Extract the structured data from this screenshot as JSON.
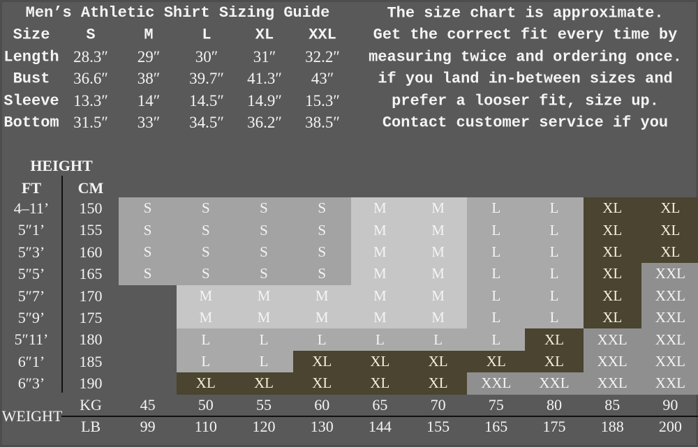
{
  "title": "Men’s Athletic Shirt Sizing Guide",
  "notes": [
    "The size chart is approximate.",
    "Get the correct fit every time by",
    "measuring twice and ordering once.",
    "if you land in-between sizes and",
    "prefer a looser fit, size up.",
    "Contact customer service if you"
  ],
  "measurements": {
    "header": [
      "Size",
      "S",
      "M",
      "L",
      "XL",
      "XXL"
    ],
    "rows": [
      [
        "Length",
        "28.3″",
        "29″",
        "30″",
        "31″",
        "32.2″"
      ],
      [
        "Bust",
        "36.6″",
        "38″",
        "39.7″",
        "41.3″",
        "43″"
      ],
      [
        "Sleeve",
        "13.3″",
        "14″",
        "14.5″",
        "14.9″",
        "15.3″"
      ],
      [
        "Bottom",
        "31.5″",
        "33″",
        "34.5″",
        "36.2″",
        "38.5″"
      ]
    ]
  },
  "height": {
    "label": "HEIGHT",
    "ft_label": "FT",
    "cm_label": "CM",
    "ft": [
      "4–11’",
      "5″1’",
      "5″3’",
      "5″5’",
      "5″7’",
      "5″9’",
      "5″11’",
      "6″1’",
      "6″3’"
    ],
    "cm": [
      "150",
      "155",
      "160",
      "165",
      "170",
      "175",
      "180",
      "185",
      "190"
    ]
  },
  "weight": {
    "label": "WEIGHT",
    "kg_label": "KG",
    "lb_label": "LB",
    "kg": [
      "45",
      "50",
      "55",
      "60",
      "65",
      "70",
      "75",
      "80",
      "85",
      "90"
    ],
    "lb": [
      "99",
      "110",
      "120",
      "130",
      "144",
      "155",
      "165",
      "175",
      "188",
      "200"
    ]
  },
  "grid": [
    [
      "S",
      "S",
      "S",
      "S",
      "M",
      "M",
      "L",
      "L",
      "XL",
      "XL"
    ],
    [
      "S",
      "S",
      "S",
      "S",
      "M",
      "M",
      "L",
      "L",
      "XL",
      "XL"
    ],
    [
      "S",
      "S",
      "S",
      "S",
      "M",
      "M",
      "L",
      "L",
      "XL",
      "XL"
    ],
    [
      "S",
      "S",
      "S",
      "S",
      "M",
      "M",
      "L",
      "L",
      "XL",
      "XXL"
    ],
    [
      "",
      "M",
      "M",
      "M",
      "M",
      "M",
      "L",
      "L",
      "XL",
      "XXL"
    ],
    [
      "",
      "M",
      "M",
      "M",
      "M",
      "M",
      "L",
      "L",
      "XL",
      "XXL"
    ],
    [
      "",
      "L",
      "L",
      "L",
      "L",
      "L",
      "L",
      "XL",
      "XXL",
      "XXL"
    ],
    [
      "",
      "L",
      "L",
      "XL",
      "XL",
      "XL",
      "XL",
      "XL",
      "XXL",
      "XXL"
    ],
    [
      "",
      "XL",
      "XL",
      "XL",
      "XL",
      "XL",
      "XXL",
      "XXL",
      "XXL",
      "XXL"
    ]
  ],
  "colors": {
    "background": "#595959",
    "S": "#a3a3a3",
    "M": "#c6c6c6",
    "L": "#a9a9a9",
    "XL": "#4a4430",
    "XXL": "#8f8f8f"
  }
}
